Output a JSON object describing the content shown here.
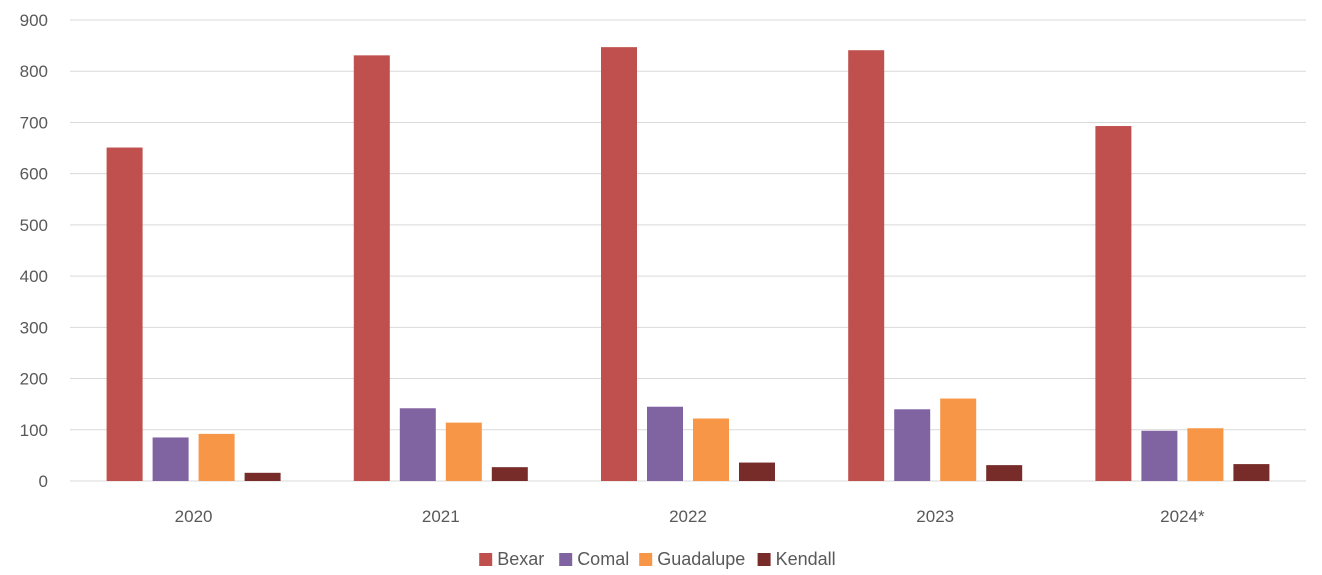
{
  "chart_data": {
    "type": "bar",
    "categories": [
      "2020",
      "2021",
      "2022",
      "2023",
      "2024*"
    ],
    "series": [
      {
        "name": "Bexar",
        "values": [
          651,
          831,
          847,
          841,
          693
        ],
        "color": "#C0504D"
      },
      {
        "name": "Comal",
        "values": [
          85,
          142,
          145,
          140,
          98
        ],
        "color": "#8064A2"
      },
      {
        "name": "Guadalupe",
        "values": [
          92,
          114,
          122,
          161,
          103
        ],
        "color": "#F79646"
      },
      {
        "name": "Kendall",
        "values": [
          16,
          27,
          36,
          31,
          33
        ],
        "color": "#772C2A"
      }
    ],
    "y_ticks": [
      "0",
      "100",
      "200",
      "300",
      "400",
      "500",
      "600",
      "700",
      "800",
      "900"
    ],
    "ylim": [
      0,
      900
    ],
    "grid": true,
    "legend_position": "bottom-center"
  }
}
